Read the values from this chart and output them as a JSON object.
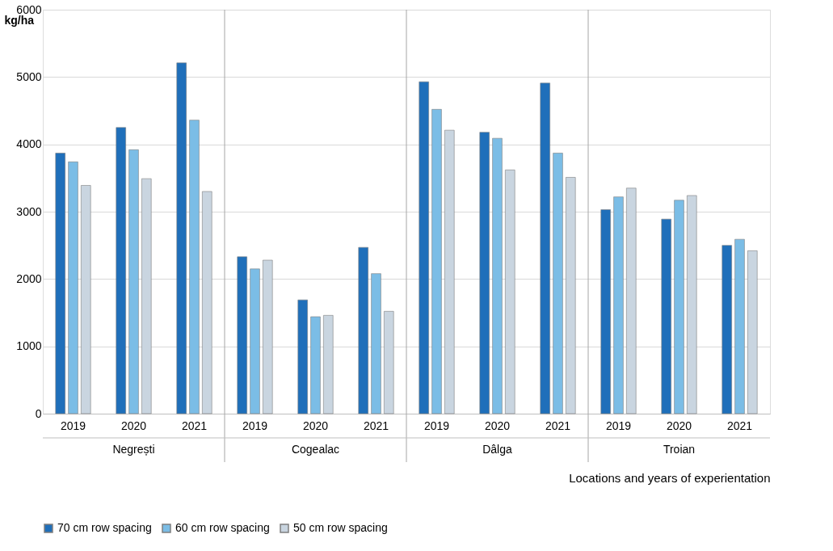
{
  "chart_data": {
    "type": "bar",
    "categories": [
      "2019",
      "2020",
      "2021",
      "2019",
      "2020",
      "2021",
      "2019",
      "2020",
      "2021",
      "2019",
      "2020",
      "2021"
    ],
    "annotations": [
      "Negrești",
      "Cogealac",
      "Dâlga",
      "Troian"
    ],
    "xlabel": "Locations and years of experientation",
    "ylabel": "kg/ha",
    "series": [
      {
        "name": "70 cm row spacing",
        "color": "#1f6fba",
        "values": [
          3870,
          4250,
          5210,
          2330,
          1690,
          2470,
          4930,
          4180,
          4910,
          3030,
          2890,
          2500
        ]
      },
      {
        "name": "60 cm row spacing",
        "color": "#7bbde6",
        "values": [
          3740,
          3920,
          4360,
          2150,
          1440,
          2080,
          4520,
          4090,
          3870,
          3220,
          3170,
          2590
        ]
      },
      {
        "name": "50 cm row spacing",
        "color": "#c9d5e0",
        "values": [
          3390,
          3490,
          3300,
          2280,
          1460,
          1520,
          4210,
          3620,
          3510,
          3350,
          3240,
          2420
        ]
      }
    ],
    "ylim": [
      0,
      6000
    ],
    "yticks": [
      0,
      1000,
      2000,
      3000,
      4000,
      5000,
      6000
    ],
    "grid": "y",
    "legend": "bottom"
  }
}
